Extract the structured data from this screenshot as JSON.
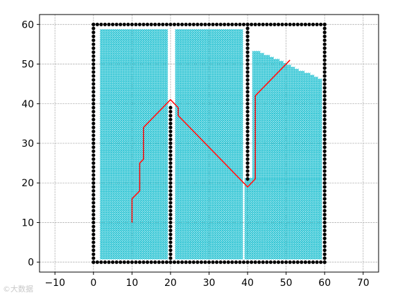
{
  "chart_data": {
    "type": "scatter",
    "title": "",
    "xlabel": "",
    "ylabel": "",
    "xlim": [
      -14,
      74
    ],
    "ylim": [
      -2.5,
      62.5
    ],
    "xticks": [
      -10,
      0,
      10,
      20,
      30,
      40,
      50,
      60,
      70
    ],
    "yticks": [
      0,
      10,
      20,
      30,
      40,
      50,
      60
    ],
    "grid": true,
    "legend": "none",
    "series": [
      {
        "kind": "obstacle-points",
        "marker": "circle",
        "color": "#000000",
        "segments": [
          {
            "from": [
              0,
              0
            ],
            "to": [
              60,
              0
            ],
            "step": 1
          },
          {
            "from": [
              0,
              0
            ],
            "to": [
              0,
              60
            ],
            "step": 1
          },
          {
            "from": [
              0,
              60
            ],
            "to": [
              60,
              60
            ],
            "step": 1
          },
          {
            "from": [
              60,
              0
            ],
            "to": [
              60,
              60
            ],
            "step": 1
          },
          {
            "from": [
              20,
              0
            ],
            "to": [
              20,
              39
            ],
            "step": 1
          },
          {
            "from": [
              40,
              21
            ],
            "to": [
              40,
              60
            ],
            "step": 1
          }
        ]
      },
      {
        "kind": "explored-cells",
        "marker": "x",
        "color": "#17becf",
        "regions": [
          {
            "x": [
              2,
              19
            ],
            "y": [
              1,
              58.5
            ]
          },
          {
            "x": [
              21.5,
              38.5
            ],
            "y": [
              1,
              58.5
            ]
          },
          {
            "x": [
              39.5,
              59
            ],
            "y": [
              1,
              21
            ]
          },
          {
            "x": [
              41.5,
              59
            ],
            "y": [
              21,
              47
            ],
            "top_boundary": [
              [
                41.5,
                53
              ],
              [
                43,
                53
              ],
              [
                48,
                51
              ],
              [
                52,
                49
              ],
              [
                56,
                47.5
              ],
              [
                59,
                46
              ]
            ]
          }
        ]
      },
      {
        "kind": "path",
        "color": "#ff0000",
        "points": [
          [
            10,
            10
          ],
          [
            10,
            16
          ],
          [
            12,
            18
          ],
          [
            12,
            25
          ],
          [
            13,
            26
          ],
          [
            13,
            34
          ],
          [
            20,
            41
          ],
          [
            22,
            39
          ],
          [
            22,
            37
          ],
          [
            40,
            19
          ],
          [
            42,
            21
          ],
          [
            42,
            42
          ],
          [
            51,
            51
          ]
        ]
      }
    ]
  },
  "watermark": "©大数据"
}
